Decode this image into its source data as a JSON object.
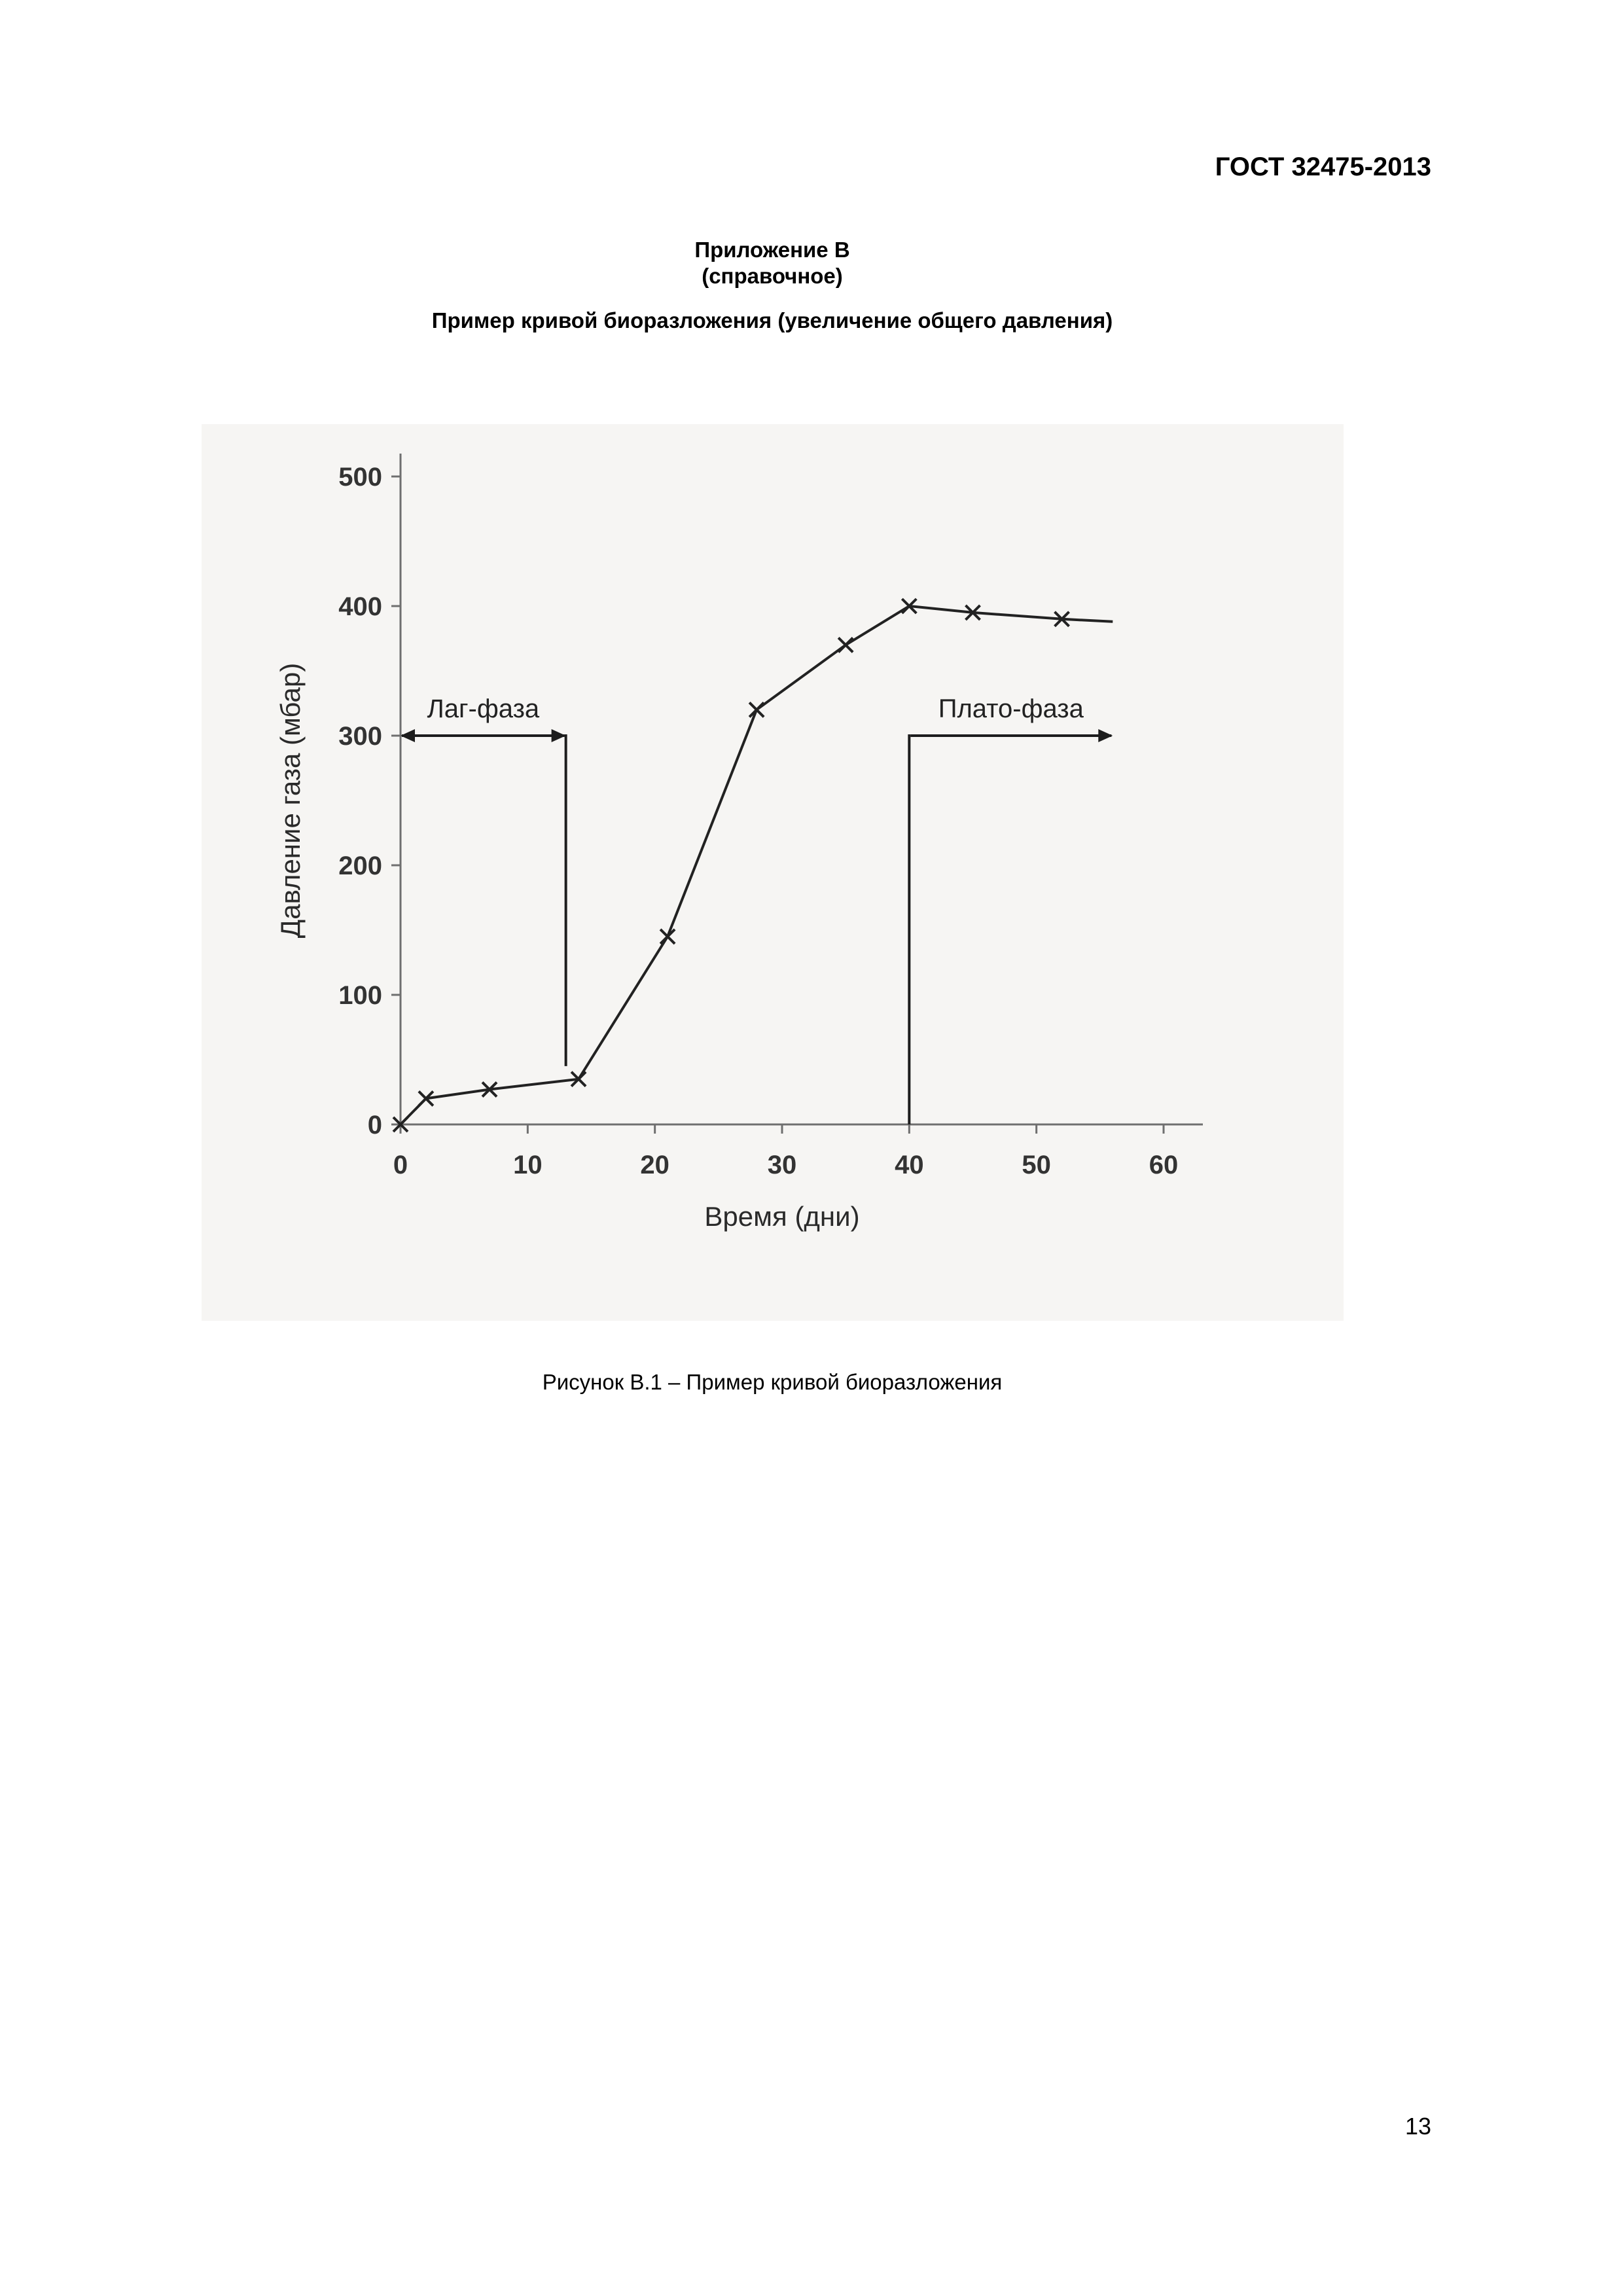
{
  "header": {
    "doc_code": "ГОСТ 32475-2013"
  },
  "appendix": {
    "title": "Приложение В",
    "subtitle": "(справочное)",
    "heading": "Пример кривой биоразложения (увеличение общего давления)"
  },
  "figure": {
    "caption": "Рисунок В.1 – Пример кривой биоразложения"
  },
  "footer": {
    "page_number": "13"
  },
  "chart_data": {
    "type": "line",
    "title": "",
    "xlabel": "Время (дни)",
    "ylabel": "Давление газа (мбар)",
    "xlim": [
      0,
      60
    ],
    "ylim": [
      0,
      500
    ],
    "xticks": [
      "0",
      "10",
      "20",
      "30",
      "40",
      "50",
      "60"
    ],
    "yticks": [
      "0",
      "100",
      "200",
      "300",
      "400",
      "500"
    ],
    "grid": false,
    "line_color": "#222222",
    "series": [
      {
        "points": [
          {
            "x": 0,
            "y": 0
          },
          {
            "x": 2,
            "y": 20
          },
          {
            "x": 7,
            "y": 27
          },
          {
            "x": 14,
            "y": 35
          },
          {
            "x": 21,
            "y": 145
          },
          {
            "x": 28,
            "y": 320
          },
          {
            "x": 35,
            "y": 370
          },
          {
            "x": 40,
            "y": 400
          },
          {
            "x": 45,
            "y": 395
          },
          {
            "x": 52,
            "y": 390
          },
          {
            "x": 56,
            "y": 388
          }
        ],
        "markers_at": [
          0,
          2,
          7,
          14,
          21,
          28,
          35,
          40,
          45,
          52
        ]
      }
    ],
    "annotations": [
      {
        "label": "Лаг-фаза",
        "x_from": 0,
        "x_to": 13,
        "y": 300,
        "vline_x": 13,
        "vline_to": 45
      },
      {
        "label": "Плато-фаза",
        "x_from": 40,
        "x_to": 56,
        "y": 300,
        "vline_x": 40,
        "vline_to": 0
      }
    ]
  }
}
